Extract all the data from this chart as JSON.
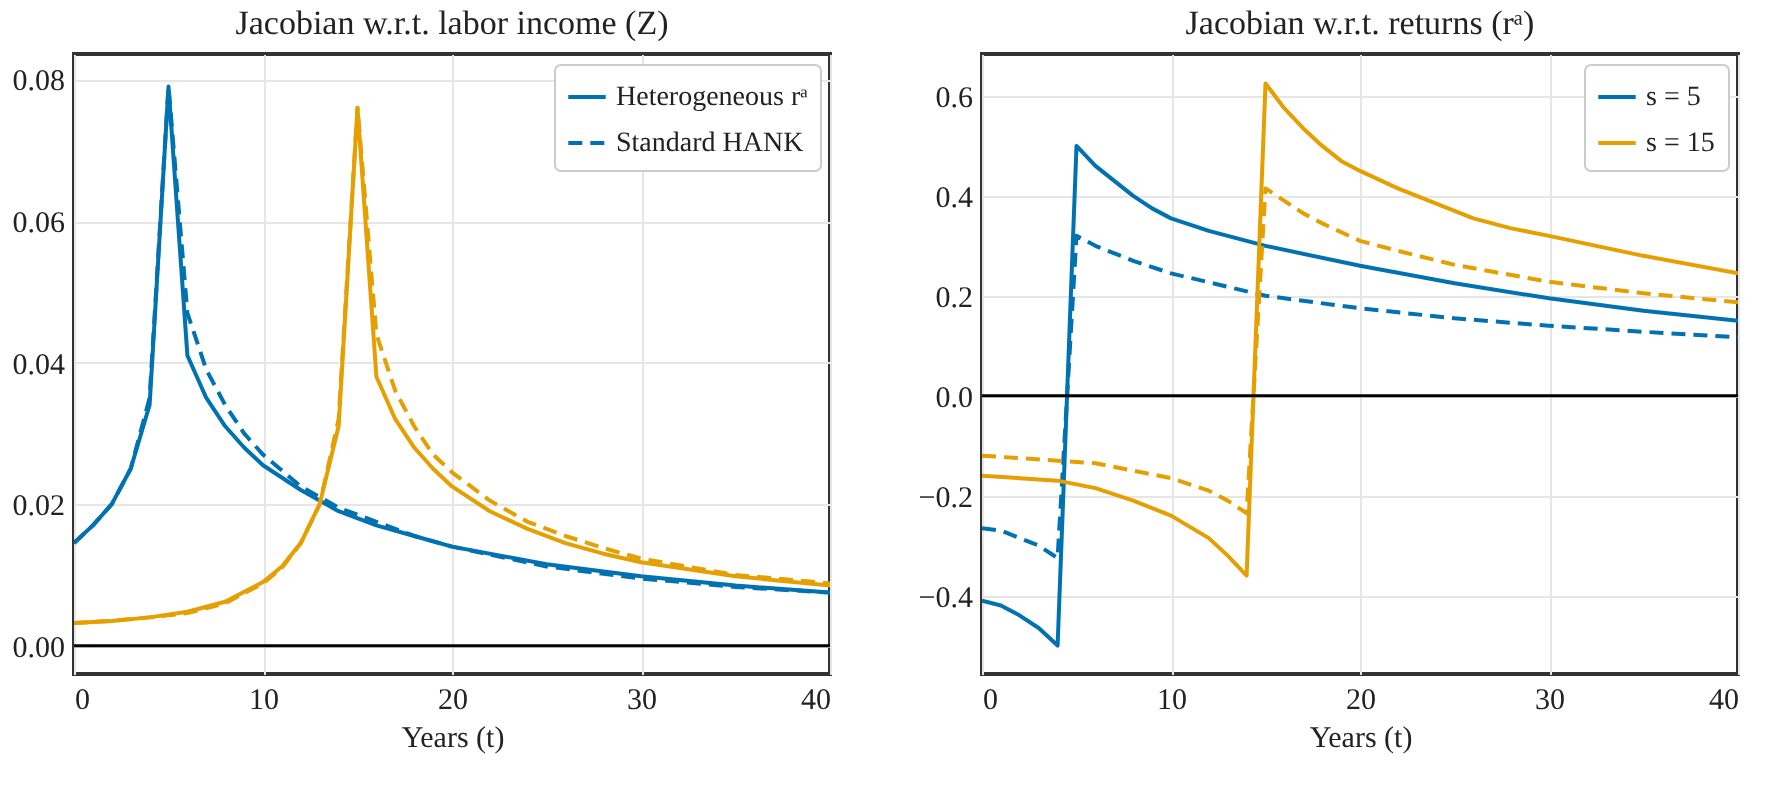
{
  "chart_data": [
    {
      "type": "line",
      "title": "Jacobian w.r.t. labor income (Z)",
      "xlabel": "Years (t)",
      "xlim": [
        0,
        40
      ],
      "xticks": [
        0,
        10,
        20,
        30,
        40
      ],
      "ylim": [
        -0.004,
        0.0836
      ],
      "yticks": [
        {
          "value": 0,
          "label": "0.00"
        },
        0.02,
        0.04,
        0.06,
        0.08
      ],
      "grid": true,
      "legend": "top right",
      "ref_lines": [
        {
          "axis": "y",
          "value": 0,
          "color": "#000000"
        }
      ],
      "series": [
        {
          "name": "Heterogeneous rᵃ",
          "color": "#0072b2",
          "line_style": "solid",
          "x": [
            0,
            1,
            2,
            3,
            4,
            5,
            6,
            7,
            8,
            9,
            10,
            12,
            14,
            16,
            18,
            20,
            25,
            30,
            35,
            40
          ],
          "values": [
            0.0145,
            0.017,
            0.02,
            0.025,
            0.034,
            0.079,
            0.041,
            0.035,
            0.031,
            0.028,
            0.0255,
            0.022,
            0.019,
            0.017,
            0.0155,
            0.014,
            0.0115,
            0.0098,
            0.0085,
            0.0075
          ]
        },
        {
          "name": "Standard HANK",
          "color": "#0072b2",
          "line_style": "dashed",
          "x": [
            0,
            1,
            2,
            3,
            4,
            5,
            6,
            7,
            8,
            9,
            10,
            12,
            14,
            16,
            18,
            20,
            25,
            30,
            35,
            40
          ],
          "values": [
            0.0145,
            0.017,
            0.02,
            0.025,
            0.035,
            0.079,
            0.047,
            0.039,
            0.034,
            0.03,
            0.027,
            0.0225,
            0.0195,
            0.0175,
            0.0155,
            0.014,
            0.0112,
            0.0095,
            0.0083,
            0.0075
          ]
        },
        {
          "color": "#e69f00",
          "line_style": "solid",
          "x": [
            0,
            2,
            4,
            6,
            8,
            10,
            11,
            12,
            13,
            14,
            15,
            16,
            17,
            18,
            19,
            20,
            22,
            24,
            26,
            28,
            30,
            35,
            40
          ],
          "values": [
            0.0032,
            0.0035,
            0.004,
            0.0048,
            0.0062,
            0.009,
            0.0112,
            0.0145,
            0.02,
            0.031,
            0.076,
            0.038,
            0.032,
            0.028,
            0.025,
            0.0225,
            0.019,
            0.0165,
            0.0145,
            0.013,
            0.0118,
            0.0098,
            0.0085
          ]
        },
        {
          "color": "#e69f00",
          "line_style": "dashed",
          "x": [
            0,
            2,
            4,
            6,
            8,
            10,
            11,
            12,
            13,
            14,
            15,
            16,
            17,
            18,
            19,
            20,
            22,
            24,
            26,
            28,
            30,
            35,
            40
          ],
          "values": [
            0.0032,
            0.0035,
            0.004,
            0.0046,
            0.006,
            0.0088,
            0.011,
            0.0145,
            0.02,
            0.032,
            0.076,
            0.044,
            0.036,
            0.031,
            0.027,
            0.0245,
            0.0205,
            0.0175,
            0.0155,
            0.0138,
            0.0123,
            0.01,
            0.0088
          ]
        }
      ]
    },
    {
      "type": "line",
      "title": "Jacobian w.r.t. returns (rᵃ)",
      "xlabel": "Years (t)",
      "xlim": [
        0,
        40
      ],
      "xticks": [
        0,
        10,
        20,
        30,
        40
      ],
      "ylim": [
        -0.557,
        0.684
      ],
      "yticks": [
        {
          "value": -0.4,
          "label": "−0.4"
        },
        {
          "value": -0.2,
          "label": "−0.2"
        },
        {
          "value": 0,
          "label": "0.0"
        },
        0.2,
        0.4,
        0.6
      ],
      "grid": true,
      "legend": "top right",
      "ref_lines": [
        {
          "axis": "y",
          "value": 0,
          "color": "#000000"
        }
      ],
      "series": [
        {
          "name": "s = 5",
          "color": "#0072b2",
          "line_style": "solid",
          "x": [
            0,
            1,
            2,
            3,
            4,
            5,
            6,
            7,
            8,
            9,
            10,
            12,
            14,
            15,
            20,
            25,
            30,
            35,
            40
          ],
          "values": [
            -0.41,
            -0.42,
            -0.44,
            -0.465,
            -0.5,
            0.5,
            0.46,
            0.43,
            0.4,
            0.375,
            0.355,
            0.33,
            0.31,
            0.3,
            0.26,
            0.225,
            0.195,
            0.17,
            0.15
          ]
        },
        {
          "color": "#0072b2",
          "line_style": "dashed",
          "x": [
            0,
            1,
            2,
            3,
            4,
            5,
            6,
            8,
            10,
            15,
            20,
            25,
            30,
            35,
            40
          ],
          "values": [
            -0.265,
            -0.27,
            -0.285,
            -0.3,
            -0.325,
            0.32,
            0.3,
            0.27,
            0.245,
            0.2,
            0.175,
            0.155,
            0.14,
            0.128,
            0.117
          ]
        },
        {
          "name": "s = 15",
          "color": "#e69f00",
          "line_style": "solid",
          "x": [
            0,
            2,
            4,
            6,
            8,
            10,
            12,
            13,
            14,
            15,
            16,
            17,
            18,
            19,
            20,
            22,
            24,
            26,
            28,
            30,
            35,
            40
          ],
          "values": [
            -0.16,
            -0.165,
            -0.17,
            -0.185,
            -0.21,
            -0.24,
            -0.285,
            -0.32,
            -0.36,
            0.625,
            0.575,
            0.535,
            0.5,
            0.47,
            0.45,
            0.415,
            0.385,
            0.355,
            0.335,
            0.32,
            0.28,
            0.245
          ]
        },
        {
          "color": "#e69f00",
          "line_style": "dashed",
          "x": [
            0,
            2,
            4,
            6,
            8,
            10,
            12,
            13,
            14,
            15,
            16,
            17,
            18,
            20,
            22,
            25,
            30,
            35,
            40
          ],
          "values": [
            -0.12,
            -0.125,
            -0.13,
            -0.135,
            -0.15,
            -0.165,
            -0.19,
            -0.21,
            -0.235,
            0.415,
            0.39,
            0.365,
            0.345,
            0.31,
            0.29,
            0.262,
            0.228,
            0.205,
            0.187
          ]
        }
      ]
    }
  ]
}
